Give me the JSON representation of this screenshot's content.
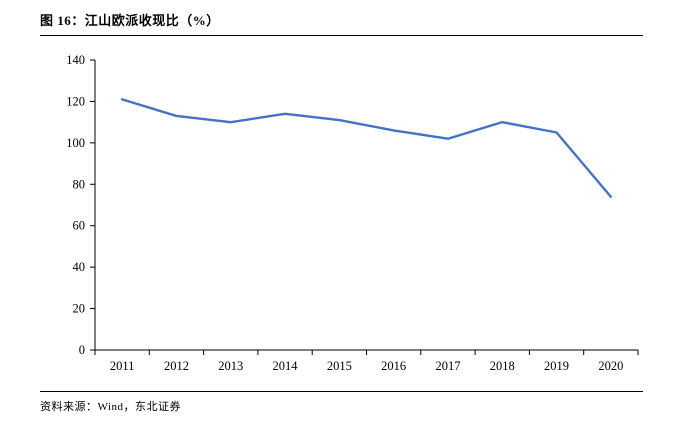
{
  "source": "资料来源：Wind，东北证券",
  "chart_data": {
    "type": "line",
    "title": "图 16：江山欧派收现比（%）",
    "categories": [
      "2011",
      "2012",
      "2013",
      "2014",
      "2015",
      "2016",
      "2017",
      "2018",
      "2019",
      "2020"
    ],
    "series": [
      {
        "name": "收现比",
        "values": [
          121,
          113,
          110,
          114,
          111,
          106,
          102,
          110,
          105,
          74
        ]
      }
    ],
    "xlabel": "",
    "ylabel": "",
    "ylim": [
      0,
      140
    ],
    "ytick_step": 20,
    "grid": false,
    "legend": "none",
    "line_color": "#4472C4",
    "axis_color": "#000000"
  }
}
